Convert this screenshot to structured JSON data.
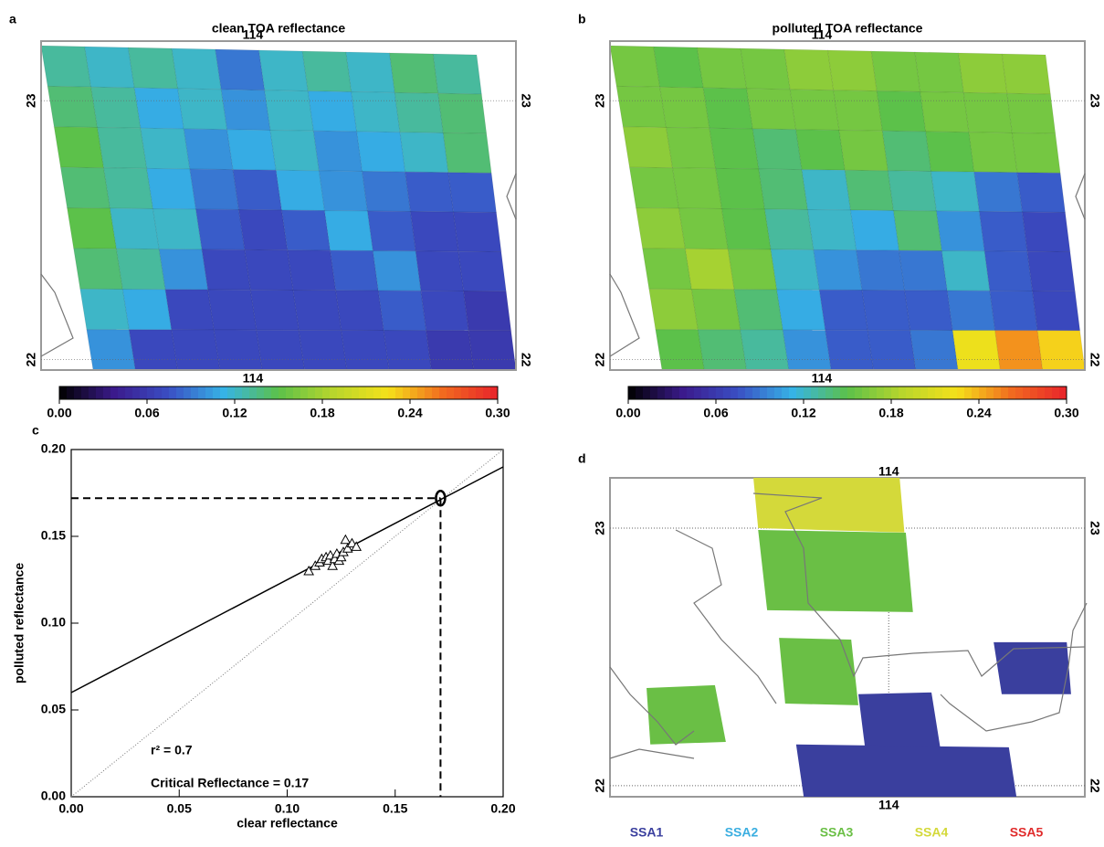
{
  "chart_data": [
    {
      "type": "heatmap",
      "label": "a",
      "title": "clean TOA reflectance",
      "xlim": [
        113.554,
        114.554
      ],
      "ylim": [
        21.96,
        23.23
      ],
      "xticks": [
        114
      ],
      "yticks": [
        22,
        23
      ],
      "values": [
        [
          0.13,
          0.12,
          0.13,
          0.12,
          0.09,
          0.12,
          0.13,
          0.12,
          0.14,
          0.13
        ],
        [
          0.14,
          0.13,
          0.11,
          0.12,
          0.1,
          0.12,
          0.11,
          0.12,
          0.13,
          0.14
        ],
        [
          0.15,
          0.13,
          0.12,
          0.1,
          0.11,
          0.12,
          0.1,
          0.11,
          0.12,
          0.14
        ],
        [
          0.14,
          0.13,
          0.11,
          0.09,
          0.08,
          0.11,
          0.1,
          0.09,
          0.08,
          0.08
        ],
        [
          0.15,
          0.12,
          0.12,
          0.08,
          0.07,
          0.08,
          0.11,
          0.08,
          0.07,
          0.07
        ],
        [
          0.14,
          0.13,
          0.1,
          0.07,
          0.07,
          0.07,
          0.08,
          0.1,
          0.07,
          0.07
        ],
        [
          0.12,
          0.11,
          0.07,
          0.07,
          0.07,
          0.07,
          0.07,
          0.08,
          0.07,
          0.06
        ],
        [
          0.1,
          0.07,
          0.07,
          0.07,
          0.07,
          0.07,
          0.07,
          0.07,
          0.06,
          0.06
        ]
      ],
      "colormap": [
        "#000000",
        "#3b1a8c",
        "#3a4fc4",
        "#36b3e6",
        "#5cc14a",
        "#b8d62c",
        "#f5e11a",
        "#f26a1f",
        "#e8232b"
      ],
      "colorbar": {
        "lim": [
          0,
          0.3
        ],
        "ticks": [
          {
            "value": 0,
            "label": "0.00"
          },
          {
            "value": 0.06,
            "label": "0.06"
          },
          {
            "value": 0.12,
            "label": "0.12"
          },
          {
            "value": 0.18,
            "label": "0.18"
          },
          {
            "value": 0.24,
            "label": "0.24"
          },
          {
            "value": 0.3,
            "label": "0.30"
          }
        ]
      }
    },
    {
      "type": "heatmap",
      "label": "b",
      "title": "polluted TOA reflectance",
      "xlim": [
        113.554,
        114.554
      ],
      "ylim": [
        21.96,
        23.23
      ],
      "xticks": [
        114
      ],
      "yticks": [
        22,
        23
      ],
      "values": [
        [
          0.16,
          0.15,
          0.16,
          0.16,
          0.17,
          0.17,
          0.16,
          0.16,
          0.17,
          0.17
        ],
        [
          0.16,
          0.16,
          0.15,
          0.16,
          0.16,
          0.16,
          0.15,
          0.16,
          0.16,
          0.16
        ],
        [
          0.17,
          0.16,
          0.15,
          0.14,
          0.15,
          0.16,
          0.14,
          0.15,
          0.16,
          0.16
        ],
        [
          0.16,
          0.16,
          0.15,
          0.14,
          0.12,
          0.14,
          0.13,
          0.12,
          0.09,
          0.08
        ],
        [
          0.17,
          0.16,
          0.15,
          0.13,
          0.12,
          0.11,
          0.14,
          0.1,
          0.08,
          0.07
        ],
        [
          0.16,
          0.18,
          0.16,
          0.12,
          0.1,
          0.09,
          0.09,
          0.12,
          0.08,
          0.07
        ],
        [
          0.17,
          0.16,
          0.14,
          0.11,
          0.08,
          0.08,
          0.08,
          0.09,
          0.08,
          0.07
        ],
        [
          0.15,
          0.14,
          0.13,
          0.1,
          0.08,
          0.08,
          0.09,
          0.22,
          0.25,
          0.23
        ]
      ],
      "colormap": [
        "#000000",
        "#3b1a8c",
        "#3a4fc4",
        "#36b3e6",
        "#5cc14a",
        "#b8d62c",
        "#f5e11a",
        "#f26a1f",
        "#e8232b"
      ],
      "colorbar": {
        "lim": [
          0,
          0.3
        ],
        "ticks": [
          {
            "value": 0,
            "label": "0.00"
          },
          {
            "value": 0.06,
            "label": "0.06"
          },
          {
            "value": 0.12,
            "label": "0.12"
          },
          {
            "value": 0.18,
            "label": "0.18"
          },
          {
            "value": 0.24,
            "label": "0.24"
          },
          {
            "value": 0.3,
            "label": "0.30"
          }
        ]
      }
    },
    {
      "type": "scatter",
      "label": "c",
      "xlabel": "clear reflectance",
      "ylabel": "polluted reflectance",
      "xlim": [
        0,
        0.2
      ],
      "ylim": [
        0,
        0.2
      ],
      "xticks": [
        {
          "value": 0,
          "label": "0.00"
        },
        {
          "value": 0.05,
          "label": "0.05"
        },
        {
          "value": 0.1,
          "label": "0.10"
        },
        {
          "value": 0.15,
          "label": "0.15"
        },
        {
          "value": 0.2,
          "label": "0.20"
        }
      ],
      "yticks": [
        {
          "value": 0,
          "label": "0.00"
        },
        {
          "value": 0.05,
          "label": "0.05"
        },
        {
          "value": 0.1,
          "label": "0.10"
        },
        {
          "value": 0.15,
          "label": "0.15"
        },
        {
          "value": 0.2,
          "label": "0.20"
        }
      ],
      "x": [
        0.11,
        0.113,
        0.115,
        0.116,
        0.118,
        0.119,
        0.12,
        0.121,
        0.122,
        0.123,
        0.124,
        0.125,
        0.126,
        0.127,
        0.128,
        0.13,
        0.132
      ],
      "y": [
        0.13,
        0.133,
        0.135,
        0.137,
        0.138,
        0.136,
        0.139,
        0.133,
        0.137,
        0.14,
        0.136,
        0.138,
        0.141,
        0.148,
        0.143,
        0.146,
        0.144
      ],
      "fit": {
        "x": [
          0,
          0.2
        ],
        "y": [
          0.06,
          0.19
        ]
      },
      "identity": {
        "x": [
          0,
          0.2
        ],
        "y": [
          0,
          0.2
        ]
      },
      "critical": {
        "x": 0.171,
        "y": 0.172
      },
      "annotations": [
        "r² = 0.7",
        "Critical Reflectance = 0.17"
      ]
    },
    {
      "type": "map",
      "label": "d",
      "xlim": [
        113.413,
        114.413
      ],
      "ylim": [
        21.957,
        23.195
      ],
      "xticks": [
        114
      ],
      "yticks": [
        22,
        23
      ],
      "grid": true,
      "regions": [
        {
          "ssa": 4,
          "lon": [
            113.715,
            114.023,
            114.033,
            113.725
          ],
          "lat": [
            23.195,
            23.195,
            22.983,
            23.0
          ]
        },
        {
          "ssa": 3,
          "lon": [
            113.725,
            114.036,
            114.051,
            113.744
          ],
          "lat": [
            22.993,
            22.982,
            22.674,
            22.681
          ]
        },
        {
          "ssa": 3,
          "lon": [
            113.769,
            113.921,
            113.936,
            113.782
          ],
          "lat": [
            22.574,
            22.567,
            22.312,
            22.319
          ]
        },
        {
          "ssa": 3,
          "lon": [
            113.49,
            113.634,
            113.657,
            113.498
          ],
          "lat": [
            22.379,
            22.39,
            22.17,
            22.16
          ]
        },
        {
          "ssa": 1,
          "lon": [
            113.936,
            114.09,
            114.109,
            113.951
          ],
          "lat": [
            22.355,
            22.362,
            22.142,
            22.135
          ]
        },
        {
          "ssa": 1,
          "lon": [
            113.805,
            114.253,
            114.269,
            113.821
          ],
          "lat": [
            22.16,
            22.149,
            21.957,
            21.957
          ]
        },
        {
          "ssa": 1,
          "lon": [
            114.221,
            114.375,
            114.384,
            114.238
          ],
          "lat": [
            22.557,
            22.557,
            22.355,
            22.355
          ]
        }
      ],
      "legend": [
        {
          "name": "SSA1",
          "color": "#3a3f9e"
        },
        {
          "name": "SSA2",
          "color": "#3aaee0"
        },
        {
          "name": "SSA3",
          "color": "#6abf45"
        },
        {
          "name": "SSA4",
          "color": "#d4d93a"
        },
        {
          "name": "SSA5",
          "color": "#e02b2b"
        }
      ]
    }
  ]
}
